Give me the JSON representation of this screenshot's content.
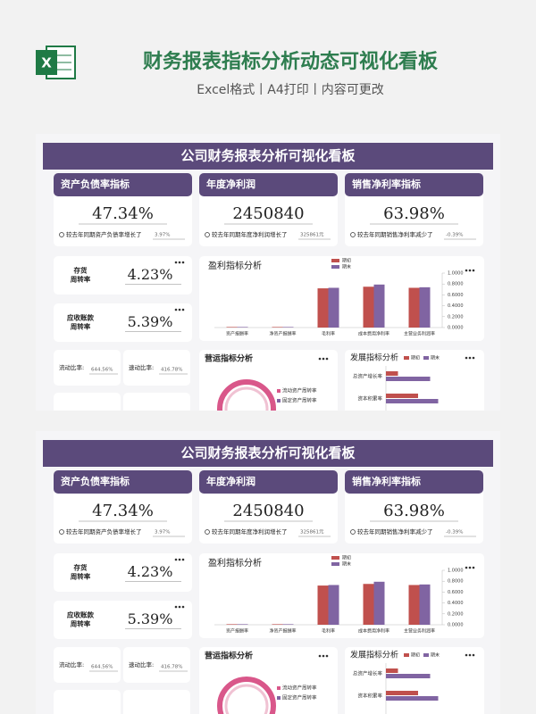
{
  "header": {
    "title": "财务报表指标分析动态可视化看板",
    "subtitle": "Excel格式丨A4打印丨内容可更改"
  },
  "dashboard": {
    "title": "公司财务报表分析可视化看板",
    "kpis": [
      {
        "title": "资产负债率指标",
        "value": "47.34%",
        "note": "较去年同期资产负债率增长了",
        "delta": "3.97%"
      },
      {
        "title": "年度净利润",
        "value": "2450840",
        "note": "较去年同期年度净利润增长了",
        "delta": "325861元"
      },
      {
        "title": "销售净利率指标",
        "value": "63.98%",
        "note": "较去年同期销售净利率减少了",
        "delta": "-0.39%"
      }
    ],
    "turnover": [
      {
        "title": [
          "存货",
          "周转率"
        ],
        "value": "4.23%"
      },
      {
        "title": [
          "应收账款",
          "周转率"
        ],
        "value": "5.39%"
      }
    ],
    "liquidity": [
      {
        "title": "流动比率:",
        "value": "644.56%"
      },
      {
        "title": "速动比率:",
        "value": "416.78%"
      }
    ],
    "profit": {
      "title": "盈利指标分析",
      "type": "bar",
      "categories": [
        "资产报酬率",
        "净资产报酬率",
        "毛利率",
        "成本费用净利率",
        "主营业务利润率"
      ],
      "series": [
        {
          "name": "期初",
          "color": "#c0504d",
          "values": [
            0.01,
            0.01,
            0.72,
            0.75,
            0.73
          ]
        },
        {
          "name": "期末",
          "color": "#8064a2",
          "values": [
            0.01,
            0.01,
            0.73,
            0.79,
            0.74
          ]
        }
      ],
      "ylim": [
        0,
        1
      ],
      "yticks": [
        {
          "value": 0,
          "label": "0.0000"
        },
        {
          "value": 0.2,
          "label": "0.2000"
        },
        {
          "value": 0.4,
          "label": "0.4000"
        },
        {
          "value": 0.6,
          "label": "0.6000"
        },
        {
          "value": 0.8,
          "label": "0.8000"
        },
        {
          "value": 1,
          "label": "1.0000"
        }
      ]
    },
    "ops": {
      "title": "营运指标分析",
      "legend": [
        "流动资产周转率",
        "固定资产周转率"
      ]
    },
    "growth": {
      "title": "发展指标分析",
      "type": "bar",
      "categories": [
        "总资产增长率",
        "资本积累率"
      ],
      "series": [
        {
          "name": "期初",
          "color": "#c0504d",
          "values": [
            0.15,
            0.4
          ]
        },
        {
          "name": "期末",
          "color": "#8064a2",
          "values": [
            0.55,
            0.65
          ]
        }
      ],
      "xlim": [
        0,
        1
      ]
    }
  }
}
